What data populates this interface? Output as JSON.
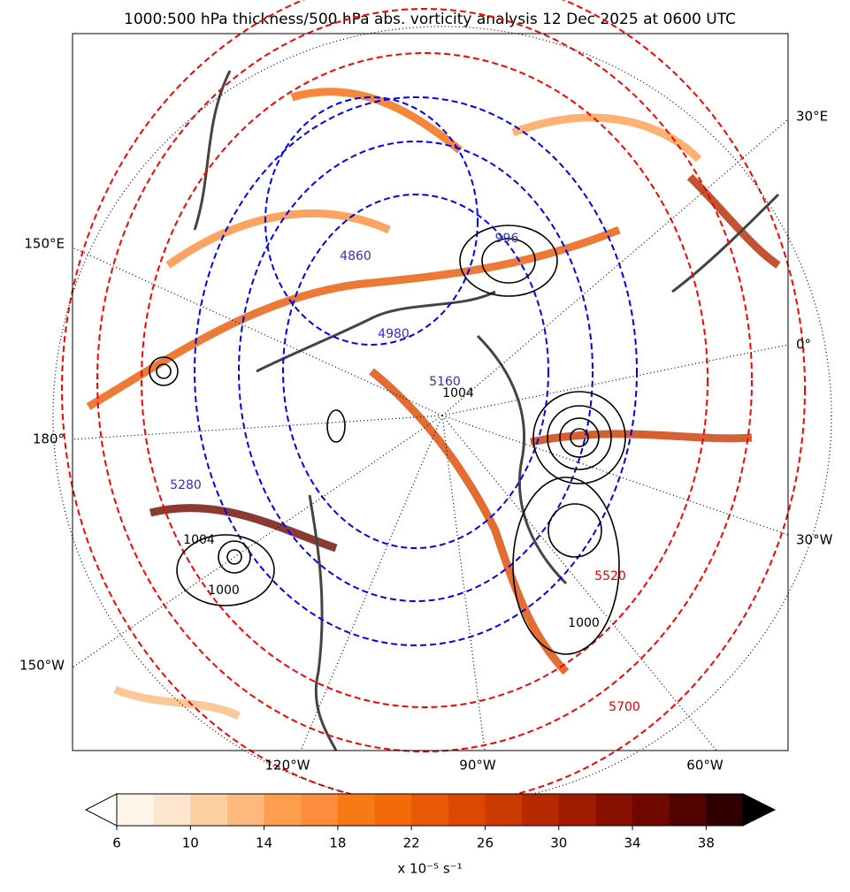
{
  "title": "1000:500 hPa thickness/500 hPa abs. vorticity analysis 12 Dec 2025 at 0600 UTC",
  "map": {
    "longitude_labels": [
      "30°E",
      "150°E",
      "0°",
      "180°",
      "30°W",
      "150°W",
      "120°W",
      "90°W",
      "60°W"
    ],
    "contour_labels": [
      "1004",
      "1000",
      "5280",
      "5700",
      "4860",
      "5520",
      "1000",
      "996",
      "5160",
      "1004",
      "4980"
    ]
  },
  "colorbar": {
    "levels": [
      6,
      8,
      10,
      12,
      14,
      16,
      18,
      20,
      22,
      24,
      26,
      28,
      30,
      32,
      34,
      36,
      38,
      40
    ],
    "colors": [
      "#fff5eb",
      "#fee6ce",
      "#fdd0a2",
      "#fdb97d",
      "#fd9f4f",
      "#fd8d3c",
      "#f87a14",
      "#f26a0a",
      "#e85a05",
      "#dc4800",
      "#c93a00",
      "#b52800",
      "#a01a00",
      "#871000",
      "#6e0800",
      "#520300",
      "#2e0000"
    ],
    "under_color": "#ffffff",
    "over_color": "#000000",
    "ticks": [
      6,
      10,
      14,
      18,
      22,
      26,
      30,
      34,
      38
    ],
    "label": "x 10⁻⁵ s⁻¹"
  }
}
